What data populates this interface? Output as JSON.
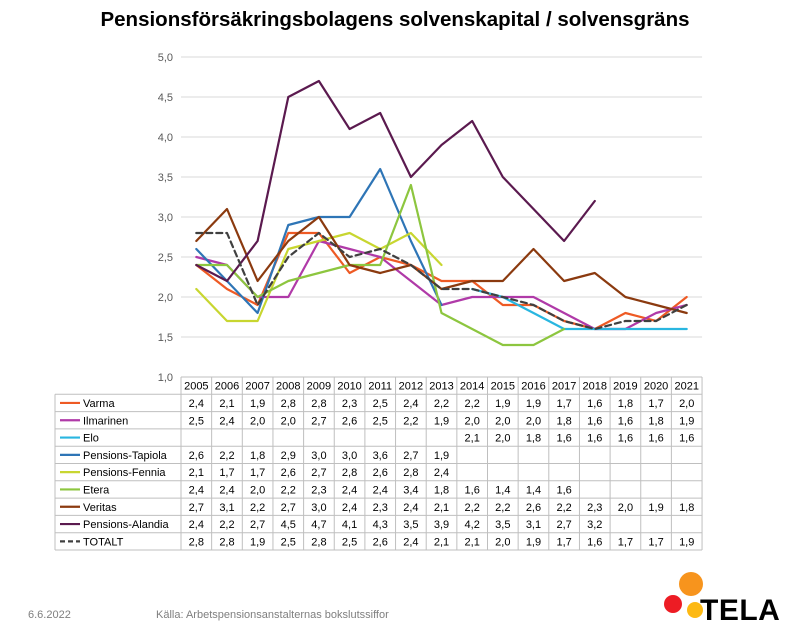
{
  "title": "Pensionsförsäkringsbolagens solvenskapital / solvensgräns",
  "footer": {
    "date": "6.6.2022",
    "source": "Källa: Arbetspensionsanstalternas bokslutssiffor"
  },
  "logo": {
    "text": "TELA",
    "icon": "tela-dots-logo",
    "colors": [
      "#ed1c24",
      "#f7941d",
      "#fdb913"
    ]
  },
  "chart_data": {
    "type": "line",
    "title": "Pensionsförsäkringsbolagens solvenskapital / solvensgräns",
    "x": [
      "2005",
      "2006",
      "2007",
      "2008",
      "2009",
      "2010",
      "2011",
      "2012",
      "2013",
      "2014",
      "2015",
      "2016",
      "2017",
      "2018",
      "2019",
      "2020",
      "2021"
    ],
    "ylim": [
      1.0,
      5.0
    ],
    "yticks": [
      "1,0",
      "1,5",
      "2,0",
      "2,5",
      "3,0",
      "3,5",
      "4,0",
      "4,5",
      "5,0"
    ],
    "grid": true,
    "legend": "data-table-below",
    "series": [
      {
        "name": "Varma",
        "color": "#ee5a24",
        "dash": false,
        "values": [
          2.4,
          2.1,
          1.9,
          2.8,
          2.8,
          2.3,
          2.5,
          2.4,
          2.2,
          2.2,
          1.9,
          1.9,
          1.7,
          1.6,
          1.8,
          1.7,
          2.0
        ],
        "labels": [
          "2,4",
          "2,1",
          "1,9",
          "2,8",
          "2,8",
          "2,3",
          "2,5",
          "2,4",
          "2,2",
          "2,2",
          "1,9",
          "1,9",
          "1,7",
          "1,6",
          "1,8",
          "1,7",
          "2,0"
        ]
      },
      {
        "name": "Ilmarinen",
        "color": "#b03aa8",
        "dash": false,
        "values": [
          2.5,
          2.4,
          2.0,
          2.0,
          2.7,
          2.6,
          2.5,
          2.2,
          1.9,
          2.0,
          2.0,
          2.0,
          1.8,
          1.6,
          1.6,
          1.8,
          1.9
        ],
        "labels": [
          "2,5",
          "2,4",
          "2,0",
          "2,0",
          "2,7",
          "2,6",
          "2,5",
          "2,2",
          "1,9",
          "2,0",
          "2,0",
          "2,0",
          "1,8",
          "1,6",
          "1,6",
          "1,8",
          "1,9"
        ]
      },
      {
        "name": "Elo",
        "color": "#29b6e0",
        "dash": false,
        "values": [
          null,
          null,
          null,
          null,
          null,
          null,
          null,
          null,
          null,
          2.1,
          2.0,
          1.8,
          1.6,
          1.6,
          1.6,
          1.6,
          1.6
        ],
        "labels": [
          "",
          "",
          "",
          "",
          "",
          "",
          "",
          "",
          "",
          "2,1",
          "2,0",
          "1,8",
          "1,6",
          "1,6",
          "1,6",
          "1,6",
          "1,6"
        ]
      },
      {
        "name": "Pensions-Tapiola",
        "color": "#2e75b6",
        "dash": false,
        "values": [
          2.6,
          2.2,
          1.8,
          2.9,
          3.0,
          3.0,
          3.6,
          2.7,
          1.9,
          null,
          null,
          null,
          null,
          null,
          null,
          null,
          null
        ],
        "labels": [
          "2,6",
          "2,2",
          "1,8",
          "2,9",
          "3,0",
          "3,0",
          "3,6",
          "2,7",
          "1,9",
          "",
          "",
          "",
          "",
          "",
          "",
          "",
          ""
        ]
      },
      {
        "name": "Pensions-Fennia",
        "color": "#c8d630",
        "dash": false,
        "values": [
          2.1,
          1.7,
          1.7,
          2.6,
          2.7,
          2.8,
          2.6,
          2.8,
          2.4,
          null,
          null,
          null,
          null,
          null,
          null,
          null,
          null
        ],
        "labels": [
          "2,1",
          "1,7",
          "1,7",
          "2,6",
          "2,7",
          "2,8",
          "2,6",
          "2,8",
          "2,4",
          "",
          "",
          "",
          "",
          "",
          "",
          "",
          ""
        ]
      },
      {
        "name": "Etera",
        "color": "#8dc63f",
        "dash": false,
        "values": [
          2.4,
          2.4,
          2.0,
          2.2,
          2.3,
          2.4,
          2.4,
          3.4,
          1.8,
          1.6,
          1.4,
          1.4,
          1.6,
          null,
          null,
          null,
          null
        ],
        "labels": [
          "2,4",
          "2,4",
          "2,0",
          "2,2",
          "2,3",
          "2,4",
          "2,4",
          "3,4",
          "1,8",
          "1,6",
          "1,4",
          "1,4",
          "1,6",
          "",
          "",
          "",
          ""
        ]
      },
      {
        "name": "Veritas",
        "color": "#8b3a0f",
        "dash": false,
        "values": [
          2.7,
          3.1,
          2.2,
          2.7,
          3.0,
          2.4,
          2.3,
          2.4,
          2.1,
          2.2,
          2.2,
          2.6,
          2.2,
          2.3,
          2.0,
          1.9,
          1.8
        ],
        "labels": [
          "2,7",
          "3,1",
          "2,2",
          "2,7",
          "3,0",
          "2,4",
          "2,3",
          "2,4",
          "2,1",
          "2,2",
          "2,2",
          "2,6",
          "2,2",
          "2,3",
          "2,0",
          "1,9",
          "1,8"
        ]
      },
      {
        "name": "Pensions-Alandia",
        "color": "#5b1a4f",
        "dash": false,
        "values": [
          2.4,
          2.2,
          2.7,
          4.5,
          4.7,
          4.1,
          4.3,
          3.5,
          3.9,
          4.2,
          3.5,
          3.1,
          2.7,
          3.2,
          null,
          null,
          null
        ],
        "labels": [
          "2,4",
          "2,2",
          "2,7",
          "4,5",
          "4,7",
          "4,1",
          "4,3",
          "3,5",
          "3,9",
          "4,2",
          "3,5",
          "3,1",
          "2,7",
          "3,2",
          "",
          "",
          ""
        ]
      },
      {
        "name": "TOTALT",
        "color": "#404040",
        "dash": true,
        "values": [
          2.8,
          2.8,
          1.9,
          2.5,
          2.8,
          2.5,
          2.6,
          2.4,
          2.1,
          2.1,
          2.0,
          1.9,
          1.7,
          1.6,
          1.7,
          1.7,
          1.9
        ],
        "labels": [
          "2,8",
          "2,8",
          "1,9",
          "2,5",
          "2,8",
          "2,5",
          "2,6",
          "2,4",
          "2,1",
          "2,1",
          "2,0",
          "1,9",
          "1,7",
          "1,6",
          "1,7",
          "1,7",
          "1,9"
        ]
      }
    ]
  }
}
